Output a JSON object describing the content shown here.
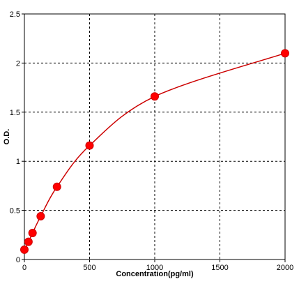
{
  "chart_data": {
    "type": "scatter",
    "title": "",
    "xlabel": "Concentration(pg/ml)",
    "ylabel": "O.D.",
    "xlim": [
      0,
      2000
    ],
    "ylim": [
      0,
      2.5
    ],
    "x_ticks": [
      0,
      500,
      1000,
      1500,
      2000
    ],
    "x_tick_labels": [
      "0",
      "500",
      "1000",
      "1500",
      "2000"
    ],
    "y_ticks": [
      0,
      0.5,
      1,
      1.5,
      2,
      2.5
    ],
    "y_tick_labels": [
      "0",
      "0.5",
      "1",
      "1.5",
      "2",
      "2.5"
    ],
    "grid": true,
    "grid_style": "dashed",
    "fit_curve": "smooth standard curve through points",
    "series": [
      {
        "points": [
          {
            "x": 0,
            "y": 0.1
          },
          {
            "x": 31.25,
            "y": 0.18
          },
          {
            "x": 62.5,
            "y": 0.27
          },
          {
            "x": 125,
            "y": 0.44
          },
          {
            "x": 250,
            "y": 0.74
          },
          {
            "x": 500,
            "y": 1.16
          },
          {
            "x": 1000,
            "y": 1.66
          },
          {
            "x": 2000,
            "y": 2.1
          }
        ],
        "color": "#ff0000",
        "line_color": "#cc0000"
      }
    ]
  }
}
